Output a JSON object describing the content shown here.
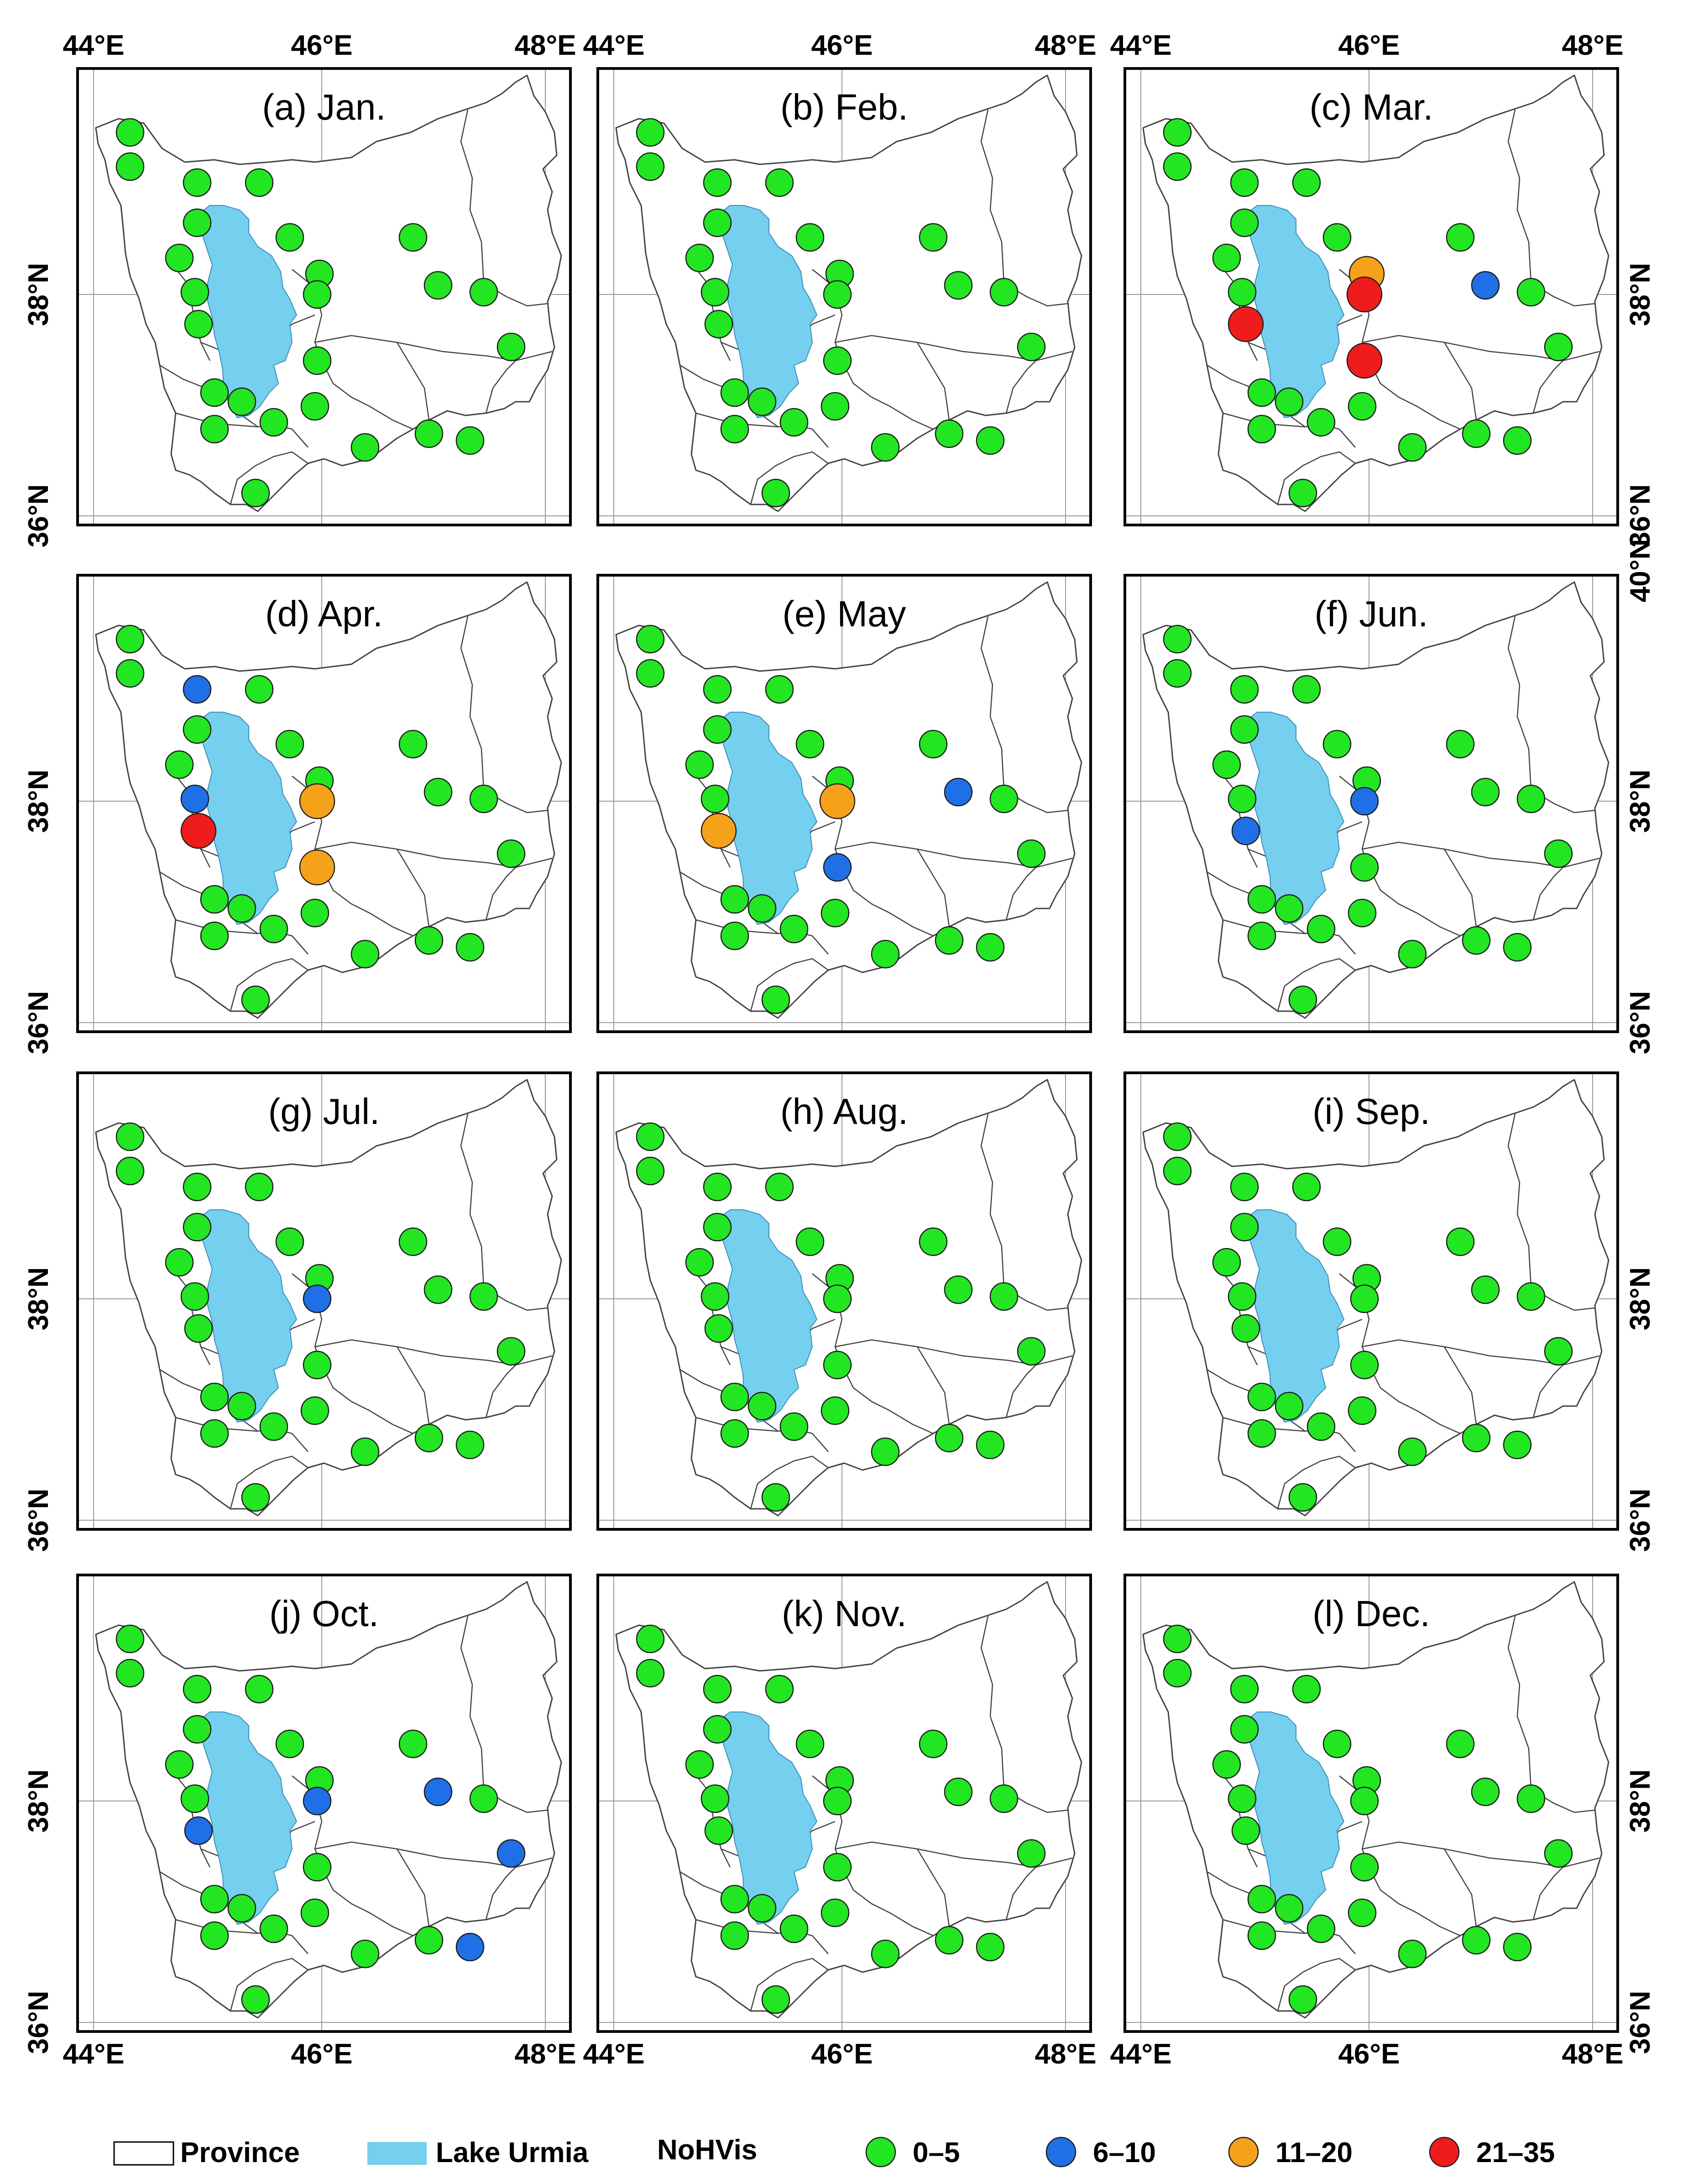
{
  "axis_labels": {
    "lon": [
      "44°E",
      "46°E",
      "48°E"
    ],
    "lat": [
      "36°N",
      "38°N",
      "40°N"
    ]
  },
  "category_colors": {
    "0-5": "#22e622",
    "6-10": "#1f6fe6",
    "11-20": "#f5a21a",
    "21-35": "#ee1c1c"
  },
  "legend": {
    "province_label": "Province",
    "lake_label": "Lake Urmia",
    "variable_label": "NoHVis",
    "classes": [
      {
        "key": "0-5",
        "label": "0–5"
      },
      {
        "key": "6-10",
        "label": "6–10"
      },
      {
        "key": "11-20",
        "label": "11–20"
      },
      {
        "key": "21-35",
        "label": "21–35"
      }
    ]
  },
  "panels": [
    {
      "title": "(a) Jan.",
      "highlights": []
    },
    {
      "title": "(b) Feb.",
      "highlights": []
    },
    {
      "title": "(c) Mar.",
      "highlights": [
        {
          "station": 11,
          "cls": "21-35"
        },
        {
          "station": 10,
          "cls": "21-35"
        },
        {
          "station": 15,
          "cls": "21-35"
        },
        {
          "station": 9,
          "cls": "11-20"
        },
        {
          "station": 13,
          "cls": "6-10"
        }
      ]
    },
    {
      "title": "(d) Apr.",
      "highlights": [
        {
          "station": 2,
          "cls": "6-10"
        },
        {
          "station": 8,
          "cls": "6-10"
        },
        {
          "station": 11,
          "cls": "21-35"
        },
        {
          "station": 10,
          "cls": "11-20"
        },
        {
          "station": 15,
          "cls": "11-20"
        }
      ]
    },
    {
      "title": "(e) May",
      "highlights": [
        {
          "station": 11,
          "cls": "11-20"
        },
        {
          "station": 10,
          "cls": "11-20"
        },
        {
          "station": 15,
          "cls": "6-10"
        },
        {
          "station": 13,
          "cls": "6-10"
        }
      ]
    },
    {
      "title": "(f) Jun.",
      "highlights": [
        {
          "station": 11,
          "cls": "6-10"
        },
        {
          "station": 10,
          "cls": "6-10"
        }
      ]
    },
    {
      "title": "(g) Jul.",
      "highlights": [
        {
          "station": 10,
          "cls": "6-10"
        }
      ]
    },
    {
      "title": "(h) Aug.",
      "highlights": []
    },
    {
      "title": "(i) Sep.",
      "highlights": []
    },
    {
      "title": "(j) Oct.",
      "highlights": [
        {
          "station": 10,
          "cls": "6-10"
        },
        {
          "station": 11,
          "cls": "6-10"
        },
        {
          "station": 13,
          "cls": "6-10"
        },
        {
          "station": 14,
          "cls": "6-10"
        },
        {
          "station": 22,
          "cls": "6-10"
        }
      ]
    },
    {
      "title": "(k) Nov.",
      "highlights": []
    },
    {
      "title": "(l) Dec.",
      "highlights": []
    }
  ]
}
